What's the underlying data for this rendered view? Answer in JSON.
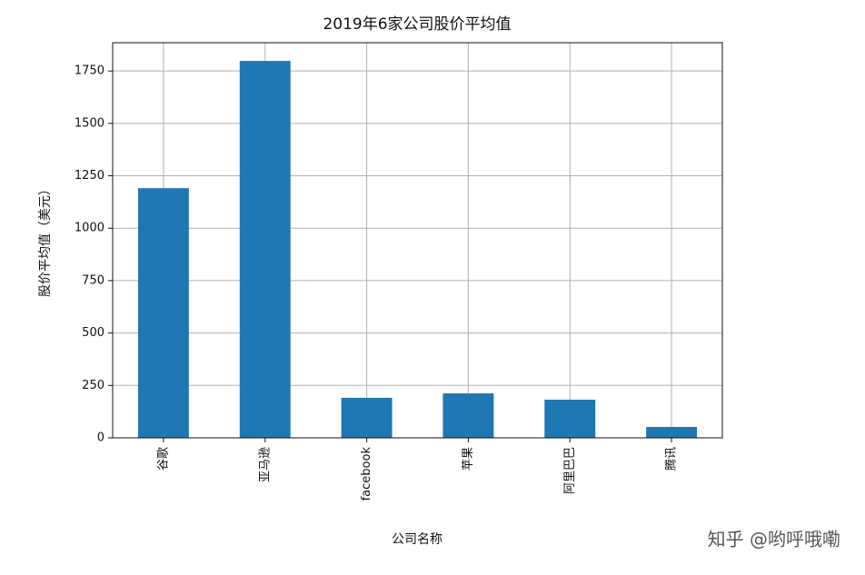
{
  "chart_data": {
    "type": "bar",
    "title": "2019年6家公司股价平均值",
    "x_label": "公司名称",
    "y_label": "股价平均值（美元）",
    "categories": [
      "谷歌",
      "亚马逊",
      "facebook",
      "苹果",
      "阿里巴巴",
      "腾讯"
    ],
    "values": [
      1191,
      1798,
      191,
      212,
      182,
      52
    ],
    "color": "#1f77b4",
    "ylim": [
      0,
      1885
    ],
    "yticks": [
      0,
      250,
      500,
      750,
      1000,
      1250,
      1500,
      1750
    ],
    "grid": true,
    "watermark": "知乎 @哟呼哦嘞"
  }
}
